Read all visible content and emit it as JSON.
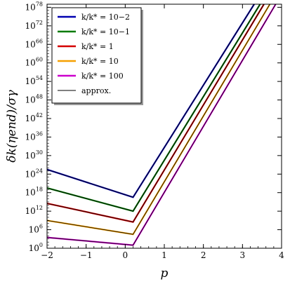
{
  "chart_data": {
    "type": "line",
    "xlabel": "p",
    "ylabel": "δk(ηend)/σγ",
    "xlim": [
      -2,
      4
    ],
    "ylim_exponent": [
      0,
      79
    ],
    "yscale": "log",
    "x_ticks": [
      "−2",
      "−1",
      "0",
      "1",
      "2",
      "3",
      "4"
    ],
    "y_ticks": [
      {
        "base": "10",
        "exp": "0"
      },
      {
        "base": "10",
        "exp": "6"
      },
      {
        "base": "10",
        "exp": "12"
      },
      {
        "base": "10",
        "exp": "18"
      },
      {
        "base": "10",
        "exp": "24"
      },
      {
        "base": "10",
        "exp": "30"
      },
      {
        "base": "10",
        "exp": "36"
      },
      {
        "base": "10",
        "exp": "42"
      },
      {
        "base": "10",
        "exp": "48"
      },
      {
        "base": "10",
        "exp": "54"
      },
      {
        "base": "10",
        "exp": "60"
      },
      {
        "base": "10",
        "exp": "66"
      },
      {
        "base": "10",
        "exp": "72"
      },
      {
        "base": "10",
        "exp": "78"
      }
    ],
    "legend_position": "top-left",
    "series": [
      {
        "name": "k/k* = 10−2",
        "color": "#0000b0",
        "log10_points": [
          [
            -2,
            25.5
          ],
          [
            0.2,
            16.5
          ],
          [
            3.3,
            79
          ]
        ]
      },
      {
        "name": "k/k* = 10−1",
        "color": "#007a00",
        "log10_points": [
          [
            -2,
            19.5
          ],
          [
            0.2,
            12.0
          ],
          [
            3.45,
            79
          ]
        ]
      },
      {
        "name": "k/k* = 1",
        "color": "#d40000",
        "log10_points": [
          [
            -2,
            14.5
          ],
          [
            0.2,
            8.5
          ],
          [
            3.55,
            79
          ]
        ]
      },
      {
        "name": "k/k* = 10",
        "color": "#f5a000",
        "log10_points": [
          [
            -2,
            9.0
          ],
          [
            0.2,
            4.5
          ],
          [
            3.7,
            79
          ]
        ]
      },
      {
        "name": "k/k* = 100",
        "color": "#cc00cc",
        "log10_points": [
          [
            -2,
            3.5
          ],
          [
            0.2,
            1.0
          ],
          [
            3.85,
            79
          ]
        ]
      }
    ],
    "approx_label": "approx."
  }
}
